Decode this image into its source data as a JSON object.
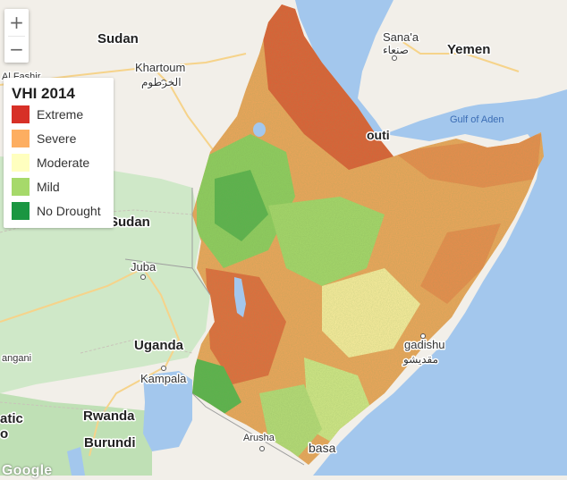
{
  "map": {
    "labels": {
      "sudan": "Sudan",
      "khartoum": "Khartoum",
      "khartoum_ar": "الخرطوم",
      "el_fasher": "Al Fashir",
      "sanaa": "Sana'a",
      "sanaa_ar": "صنعاء",
      "yemen": "Yemen",
      "gulf_of_aden": "Gulf of Aden",
      "djibouti": "outi",
      "south_sudan": "Sudan",
      "juba": "Juba",
      "uganda": "Uganda",
      "kampala": "Kampala",
      "rwanda": "Rwanda",
      "burundi": "Burundi",
      "mogadishu": "gadishu",
      "mogadishu_ar": "مقديشو",
      "arusha": "Arusha",
      "mombasa": "basa",
      "gulu": "angani",
      "drc": "atic",
      "drc2": "o"
    },
    "colors": {
      "water": "#a3c7ed",
      "land": "#f2efe9",
      "park": "#cfe8c8",
      "road": "#f6d38a"
    }
  },
  "zoom": {
    "in_label": "+",
    "out_label": "−"
  },
  "legend": {
    "title": "VHI 2014",
    "items": [
      {
        "label": "Extreme",
        "color": "#d73027"
      },
      {
        "label": "Severe",
        "color": "#fdae61"
      },
      {
        "label": "Moderate",
        "color": "#ffffbf"
      },
      {
        "label": "Mild",
        "color": "#a6d96a"
      },
      {
        "label": "No Drought",
        "color": "#1a9641"
      }
    ]
  },
  "attribution": {
    "logo": "Google"
  }
}
